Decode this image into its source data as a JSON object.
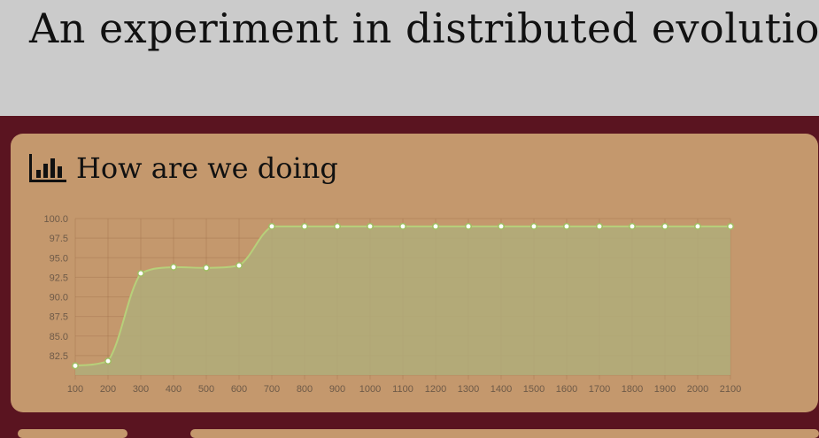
{
  "header": {
    "title": "An experiment in distributed evolutionary computation"
  },
  "panel": {
    "title": "How are we doing",
    "icon": "bar-chart-icon"
  },
  "colors": {
    "header_bg": "#cbcbcb",
    "page_bg": "#5a1420",
    "panel_bg": "#c4986d",
    "line": "#b7d07a",
    "fill": "#b0ad7a"
  },
  "chart_data": {
    "type": "area",
    "x": [
      100,
      200,
      300,
      400,
      500,
      600,
      700,
      800,
      900,
      1000,
      1100,
      1200,
      1300,
      1400,
      1500,
      1600,
      1700,
      1800,
      1900,
      2000,
      2100
    ],
    "series": [
      {
        "values": [
          81.2,
          81.8,
          93.0,
          93.8,
          93.7,
          94.0,
          99.0,
          99.0,
          99.0,
          99.0,
          99.0,
          99.0,
          99.0,
          99.0,
          99.0,
          99.0,
          99.0,
          99.0,
          99.0,
          99.0,
          99.0
        ]
      }
    ],
    "yticks": [
      "100.0",
      "97.5",
      "95.0",
      "92.5",
      "90.0",
      "87.5",
      "85.0",
      "82.5"
    ],
    "xticks": [
      "100",
      "200",
      "300",
      "400",
      "500",
      "600",
      "700",
      "800",
      "900",
      "1000",
      "1100",
      "1200",
      "1300",
      "1400",
      "1500",
      "1600",
      "1700",
      "1800",
      "1900",
      "2000",
      "2100"
    ],
    "ylim": [
      80,
      100
    ],
    "grid": true,
    "title": "",
    "xlabel": "",
    "ylabel": ""
  }
}
